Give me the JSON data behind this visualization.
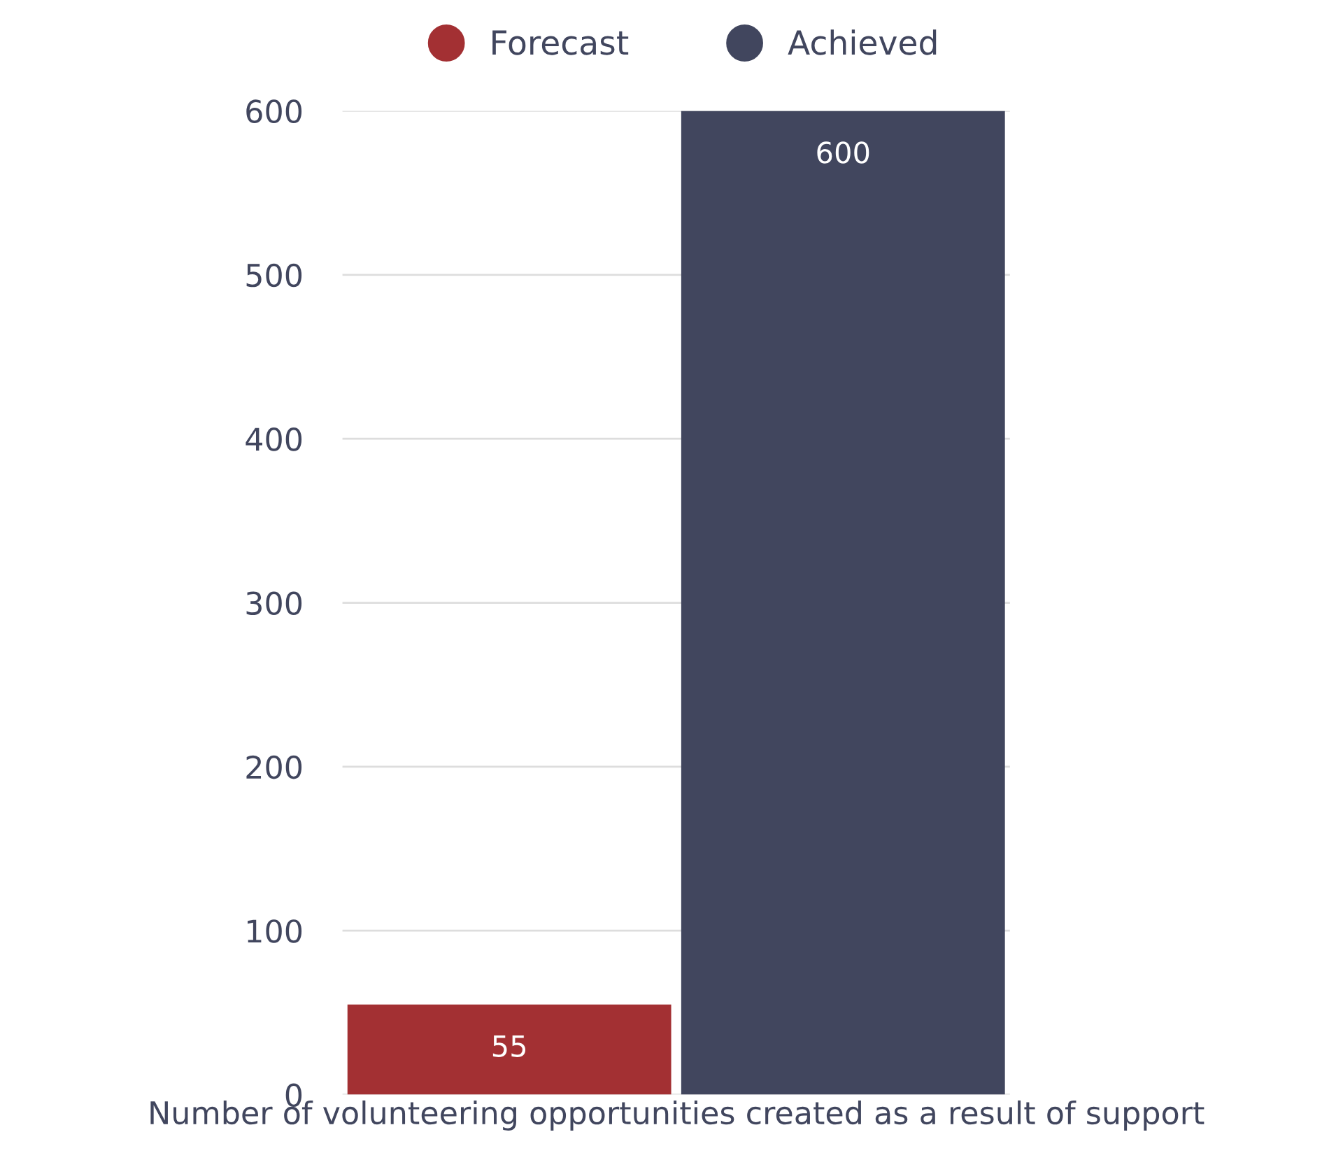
{
  "chart_data": {
    "type": "bar",
    "categories": [
      "Number of volunteering opportunities created as a result of support"
    ],
    "series": [
      {
        "name": "Forecast",
        "color": "#a33033",
        "values": [
          55
        ]
      },
      {
        "name": "Achieved",
        "color": "#41465e",
        "values": [
          600
        ]
      }
    ],
    "ylim": [
      0,
      600
    ],
    "yticks": [
      0,
      100,
      200,
      300,
      400,
      500,
      600
    ],
    "grid": "y",
    "legend": "top",
    "data_labels": true
  }
}
